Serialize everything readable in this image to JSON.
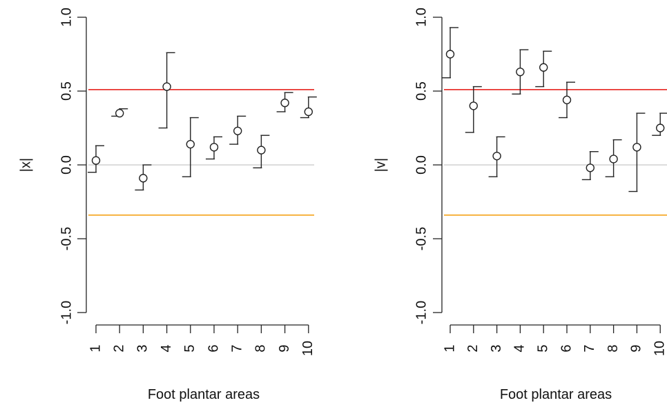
{
  "colors": {
    "axis": "#222222",
    "points": "#222222",
    "upper_line": "#e8322e",
    "lower_line": "#f5a623",
    "zero_line": "#c8c8c8"
  },
  "chart_data": [
    {
      "type": "scatter",
      "ylabel": "|x|",
      "xlabel": "Foot plantar areas",
      "x": [
        "1",
        "2",
        "3",
        "4",
        "5",
        "6",
        "7",
        "8",
        "9",
        "10"
      ],
      "ylim": [
        -1.0,
        1.0
      ],
      "yticks": [
        "-1.0",
        "-0.5",
        "0.0",
        "0.5",
        "1.0"
      ],
      "values": [
        0.03,
        0.35,
        -0.09,
        0.53,
        0.14,
        0.12,
        0.23,
        0.1,
        0.42,
        0.36
      ],
      "lower": [
        -0.05,
        0.33,
        -0.17,
        0.25,
        -0.08,
        0.04,
        0.14,
        -0.02,
        0.36,
        0.32
      ],
      "upper": [
        0.13,
        0.38,
        0.0,
        0.76,
        0.32,
        0.19,
        0.33,
        0.2,
        0.49,
        0.46
      ],
      "reference_lines": [
        {
          "y": 0.51,
          "color": "red"
        },
        {
          "y": 0.0,
          "color": "gray"
        },
        {
          "y": -0.34,
          "color": "orange"
        }
      ]
    },
    {
      "type": "scatter",
      "ylabel": "|v|",
      "xlabel": "Foot plantar areas",
      "x": [
        "1",
        "2",
        "3",
        "4",
        "5",
        "6",
        "7",
        "8",
        "9",
        "10"
      ],
      "ylim": [
        -1.0,
        1.0
      ],
      "yticks": [
        "-1.0",
        "-0.5",
        "0.0",
        "0.5",
        "1.0"
      ],
      "values": [
        0.75,
        0.4,
        0.06,
        0.63,
        0.66,
        0.44,
        -0.02,
        0.04,
        0.12,
        0.25
      ],
      "lower": [
        0.59,
        0.22,
        -0.08,
        0.48,
        0.53,
        0.32,
        -0.1,
        -0.08,
        -0.18,
        0.2
      ],
      "upper": [
        0.93,
        0.53,
        0.19,
        0.78,
        0.77,
        0.56,
        0.09,
        0.17,
        0.35,
        0.35
      ],
      "reference_lines": [
        {
          "y": 0.51,
          "color": "red"
        },
        {
          "y": 0.0,
          "color": "gray"
        },
        {
          "y": -0.34,
          "color": "orange"
        }
      ]
    }
  ]
}
